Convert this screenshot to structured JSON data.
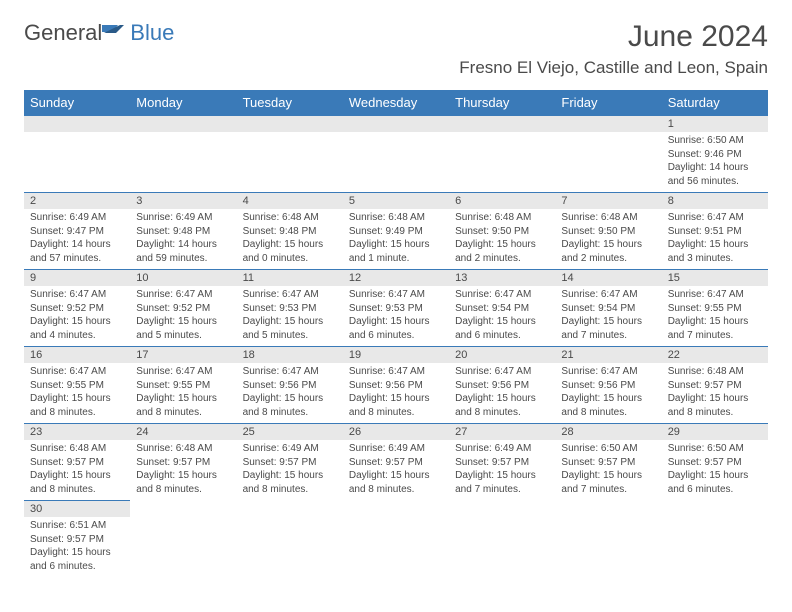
{
  "logo": {
    "part1": "General",
    "part2": "Blue"
  },
  "title": "June 2024",
  "location": "Fresno El Viejo, Castille and Leon, Spain",
  "colors": {
    "header_bg": "#3a7ab8",
    "header_text": "#ffffff",
    "border": "#3a7ab8",
    "daynum_bg": "#e8e8e8",
    "body_text": "#4a4a4a",
    "logo_accent": "#3a7ab8",
    "background": "#ffffff"
  },
  "weekdays": [
    "Sunday",
    "Monday",
    "Tuesday",
    "Wednesday",
    "Thursday",
    "Friday",
    "Saturday"
  ],
  "first_weekday_index": 6,
  "days": [
    {
      "n": 1,
      "sunrise": "6:50 AM",
      "sunset": "9:46 PM",
      "daylight": "14 hours and 56 minutes."
    },
    {
      "n": 2,
      "sunrise": "6:49 AM",
      "sunset": "9:47 PM",
      "daylight": "14 hours and 57 minutes."
    },
    {
      "n": 3,
      "sunrise": "6:49 AM",
      "sunset": "9:48 PM",
      "daylight": "14 hours and 59 minutes."
    },
    {
      "n": 4,
      "sunrise": "6:48 AM",
      "sunset": "9:48 PM",
      "daylight": "15 hours and 0 minutes."
    },
    {
      "n": 5,
      "sunrise": "6:48 AM",
      "sunset": "9:49 PM",
      "daylight": "15 hours and 1 minute."
    },
    {
      "n": 6,
      "sunrise": "6:48 AM",
      "sunset": "9:50 PM",
      "daylight": "15 hours and 2 minutes."
    },
    {
      "n": 7,
      "sunrise": "6:48 AM",
      "sunset": "9:50 PM",
      "daylight": "15 hours and 2 minutes."
    },
    {
      "n": 8,
      "sunrise": "6:47 AM",
      "sunset": "9:51 PM",
      "daylight": "15 hours and 3 minutes."
    },
    {
      "n": 9,
      "sunrise": "6:47 AM",
      "sunset": "9:52 PM",
      "daylight": "15 hours and 4 minutes."
    },
    {
      "n": 10,
      "sunrise": "6:47 AM",
      "sunset": "9:52 PM",
      "daylight": "15 hours and 5 minutes."
    },
    {
      "n": 11,
      "sunrise": "6:47 AM",
      "sunset": "9:53 PM",
      "daylight": "15 hours and 5 minutes."
    },
    {
      "n": 12,
      "sunrise": "6:47 AM",
      "sunset": "9:53 PM",
      "daylight": "15 hours and 6 minutes."
    },
    {
      "n": 13,
      "sunrise": "6:47 AM",
      "sunset": "9:54 PM",
      "daylight": "15 hours and 6 minutes."
    },
    {
      "n": 14,
      "sunrise": "6:47 AM",
      "sunset": "9:54 PM",
      "daylight": "15 hours and 7 minutes."
    },
    {
      "n": 15,
      "sunrise": "6:47 AM",
      "sunset": "9:55 PM",
      "daylight": "15 hours and 7 minutes."
    },
    {
      "n": 16,
      "sunrise": "6:47 AM",
      "sunset": "9:55 PM",
      "daylight": "15 hours and 8 minutes."
    },
    {
      "n": 17,
      "sunrise": "6:47 AM",
      "sunset": "9:55 PM",
      "daylight": "15 hours and 8 minutes."
    },
    {
      "n": 18,
      "sunrise": "6:47 AM",
      "sunset": "9:56 PM",
      "daylight": "15 hours and 8 minutes."
    },
    {
      "n": 19,
      "sunrise": "6:47 AM",
      "sunset": "9:56 PM",
      "daylight": "15 hours and 8 minutes."
    },
    {
      "n": 20,
      "sunrise": "6:47 AM",
      "sunset": "9:56 PM",
      "daylight": "15 hours and 8 minutes."
    },
    {
      "n": 21,
      "sunrise": "6:47 AM",
      "sunset": "9:56 PM",
      "daylight": "15 hours and 8 minutes."
    },
    {
      "n": 22,
      "sunrise": "6:48 AM",
      "sunset": "9:57 PM",
      "daylight": "15 hours and 8 minutes."
    },
    {
      "n": 23,
      "sunrise": "6:48 AM",
      "sunset": "9:57 PM",
      "daylight": "15 hours and 8 minutes."
    },
    {
      "n": 24,
      "sunrise": "6:48 AM",
      "sunset": "9:57 PM",
      "daylight": "15 hours and 8 minutes."
    },
    {
      "n": 25,
      "sunrise": "6:49 AM",
      "sunset": "9:57 PM",
      "daylight": "15 hours and 8 minutes."
    },
    {
      "n": 26,
      "sunrise": "6:49 AM",
      "sunset": "9:57 PM",
      "daylight": "15 hours and 8 minutes."
    },
    {
      "n": 27,
      "sunrise": "6:49 AM",
      "sunset": "9:57 PM",
      "daylight": "15 hours and 7 minutes."
    },
    {
      "n": 28,
      "sunrise": "6:50 AM",
      "sunset": "9:57 PM",
      "daylight": "15 hours and 7 minutes."
    },
    {
      "n": 29,
      "sunrise": "6:50 AM",
      "sunset": "9:57 PM",
      "daylight": "15 hours and 6 minutes."
    },
    {
      "n": 30,
      "sunrise": "6:51 AM",
      "sunset": "9:57 PM",
      "daylight": "15 hours and 6 minutes."
    }
  ],
  "labels": {
    "sunrise": "Sunrise:",
    "sunset": "Sunset:",
    "daylight": "Daylight:"
  }
}
